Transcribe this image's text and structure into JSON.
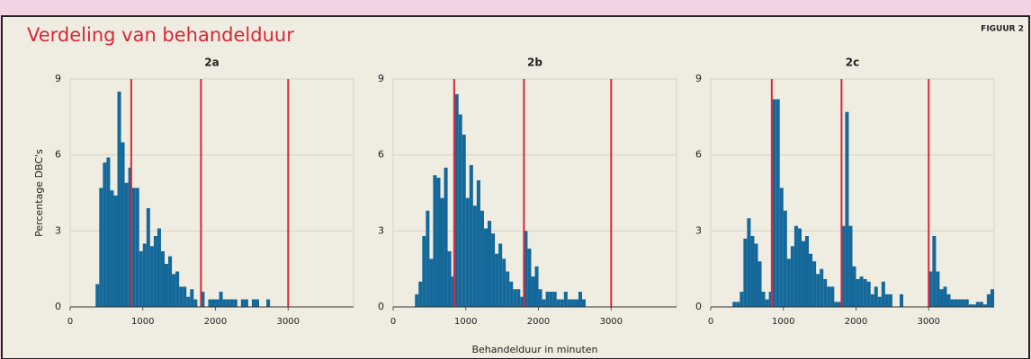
{
  "header": {
    "title": "Verdeling van behandelduur",
    "figure": "FIGUUR 2"
  },
  "chart_data": [
    {
      "type": "histogram",
      "title": "2a",
      "ylabel": "Percentage DBC's",
      "color": "#14699a",
      "bins": [
        350,
        400,
        450,
        500,
        550,
        600,
        650,
        700,
        750,
        800,
        850,
        900,
        950,
        1000,
        1050,
        1100,
        1150,
        1200,
        1250,
        1300,
        1350,
        1400,
        1450,
        1500,
        1550,
        1600,
        1650,
        1700,
        1750,
        1800,
        1850,
        1900,
        1950,
        2000,
        2050,
        2100,
        2150,
        2200,
        2250,
        2300,
        2350,
        2400,
        2450,
        2500,
        2550,
        2600,
        2650,
        2700,
        2750,
        2800
      ],
      "values": [
        0.9,
        4.7,
        5.7,
        5.9,
        4.6,
        4.4,
        8.5,
        6.5,
        4.9,
        5.5,
        4.7,
        4.7,
        2.2,
        2.5,
        3.9,
        2.4,
        2.8,
        3.1,
        2.2,
        1.7,
        2.0,
        1.3,
        1.4,
        0.8,
        0.8,
        0.4,
        0.7,
        0.3,
        0,
        0.6,
        0,
        0.3,
        0.3,
        0.3,
        0.6,
        0.3,
        0.3,
        0.3,
        0.3,
        0,
        0.3,
        0.3,
        0,
        0.3,
        0.3,
        0,
        0,
        0.3,
        0
      ],
      "vlines": [
        840,
        1800,
        3000
      ],
      "vline_color": "#d9263a",
      "xlim": [
        0,
        3900
      ],
      "xticks": [
        0,
        1000,
        2000,
        3000
      ],
      "ylim": [
        0,
        9
      ],
      "yticks": [
        0,
        3,
        6,
        9
      ],
      "grid": true
    },
    {
      "type": "histogram",
      "title": "2b",
      "xlabel": "Behandelduur in minuten",
      "color": "#14699a",
      "bins": [
        300,
        350,
        400,
        450,
        500,
        550,
        600,
        650,
        700,
        750,
        800,
        850,
        900,
        950,
        1000,
        1050,
        1100,
        1150,
        1200,
        1250,
        1300,
        1350,
        1400,
        1450,
        1500,
        1550,
        1600,
        1650,
        1700,
        1750,
        1800,
        1850,
        1900,
        1950,
        2000,
        2050,
        2100,
        2150,
        2200,
        2250,
        2300,
        2350,
        2400,
        2450,
        2500,
        2550,
        2600,
        2650,
        2700
      ],
      "values": [
        0.5,
        1.0,
        2.8,
        3.8,
        1.9,
        5.2,
        5.1,
        4.3,
        5.5,
        2.2,
        1.2,
        8.4,
        7.6,
        6.8,
        4.3,
        5.6,
        4.0,
        5.0,
        3.8,
        3.1,
        3.4,
        2.9,
        2.1,
        2.5,
        1.9,
        1.4,
        1.0,
        0.7,
        0.7,
        0.4,
        3.0,
        2.3,
        1.2,
        1.6,
        0.7,
        0.3,
        0.6,
        0.6,
        0.6,
        0.3,
        0.3,
        0.6,
        0.3,
        0.3,
        0.3,
        0.6,
        0.3,
        0
      ],
      "vlines": [
        840,
        1800,
        3000
      ],
      "vline_color": "#d9263a",
      "xlim": [
        0,
        3900
      ],
      "xticks": [
        0,
        1000,
        2000,
        3000
      ],
      "ylim": [
        0,
        9
      ],
      "yticks": [
        0,
        3,
        6,
        9
      ],
      "grid": true
    },
    {
      "type": "histogram",
      "title": "2c",
      "color": "#14699a",
      "bins": [
        300,
        350,
        400,
        450,
        500,
        550,
        600,
        650,
        700,
        750,
        800,
        850,
        900,
        950,
        1000,
        1050,
        1100,
        1150,
        1200,
        1250,
        1300,
        1350,
        1400,
        1450,
        1500,
        1550,
        1600,
        1650,
        1700,
        1750,
        1800,
        1850,
        1900,
        1950,
        2000,
        2050,
        2100,
        2150,
        2200,
        2250,
        2300,
        2350,
        2400,
        2450,
        2500,
        2550,
        2600,
        2650,
        2700,
        2750,
        2800,
        2850,
        2900,
        2950,
        3000,
        3050,
        3100,
        3150,
        3200,
        3250,
        3300,
        3350,
        3400,
        3450,
        3500,
        3550,
        3600,
        3650,
        3700,
        3750,
        3800,
        3850,
        3900
      ],
      "values": [
        0.2,
        0.2,
        0.6,
        2.7,
        3.5,
        2.8,
        2.5,
        1.8,
        0.6,
        0.3,
        0.6,
        8.2,
        8.2,
        4.7,
        3.8,
        1.9,
        2.4,
        3.2,
        3.1,
        2.6,
        2.8,
        2.1,
        1.8,
        1.3,
        1.5,
        1.1,
        0.8,
        0.8,
        0.2,
        0.2,
        3.2,
        7.7,
        3.2,
        1.6,
        1.1,
        1.2,
        1.1,
        1.0,
        0.5,
        0.8,
        0.4,
        1.0,
        0.5,
        0.5,
        0,
        0,
        0.5,
        0,
        0,
        0,
        0,
        0,
        0,
        0,
        1.4,
        2.8,
        1.4,
        0.7,
        0.8,
        0.5,
        0.3,
        0.3,
        0.3,
        0.3,
        0.3,
        0.1,
        0.1,
        0.2,
        0.2,
        0.1,
        0.5,
        0.7
      ],
      "vlines": [
        840,
        1800,
        3000
      ],
      "vline_color": "#d9263a",
      "xlim": [
        0,
        3900
      ],
      "xticks": [
        0,
        1000,
        2000,
        3000
      ],
      "ylim": [
        0,
        9
      ],
      "yticks": [
        0,
        3,
        6,
        9
      ],
      "grid": true
    }
  ]
}
